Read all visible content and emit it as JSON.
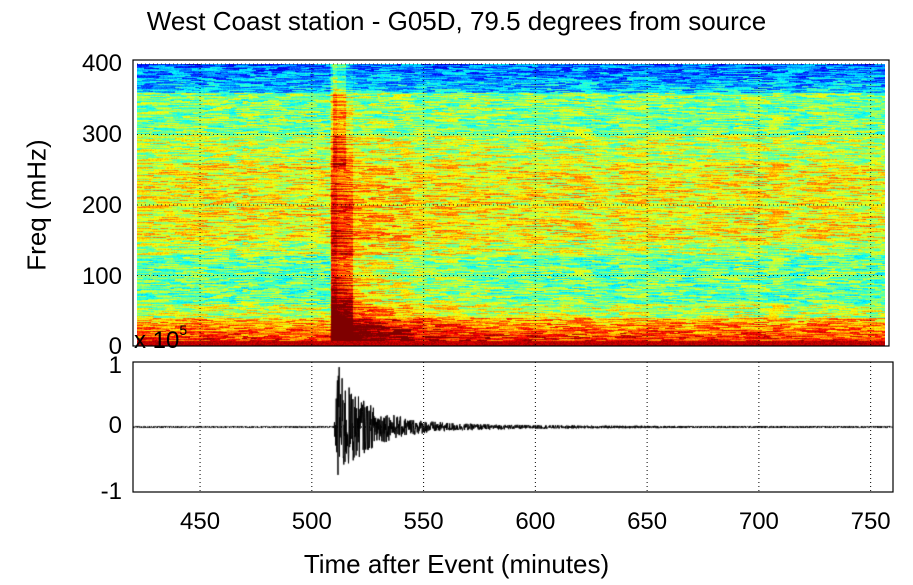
{
  "title": "West Coast station - G05D, 79.5 degrees from source",
  "chart_data": [
    {
      "type": "heatmap",
      "ylabel": "Freq (mHz)",
      "xlim": [
        420,
        760
      ],
      "ylim": [
        0,
        400
      ],
      "yticks": [
        "0",
        "100",
        "200",
        "300",
        "400"
      ],
      "grid": true,
      "colormap": "jet",
      "features": [
        {
          "x_start": 510,
          "x_end": 560,
          "y_low": 0,
          "y_high": 200,
          "level": 0.9
        },
        {
          "x_start": 420,
          "x_end": 760,
          "y_low": 0,
          "y_high": 15,
          "level": 0.95
        }
      ]
    },
    {
      "type": "line",
      "xlabel": "Time after Event (minutes)",
      "xlim": [
        420,
        760
      ],
      "ylim": [
        -1,
        1
      ],
      "xticks": [
        "450",
        "500",
        "550",
        "600",
        "650",
        "700",
        "750"
      ],
      "yticks": [
        "-1",
        "0",
        "1"
      ],
      "y_multiplier": "x 10",
      "y_multiplier_exp": "5",
      "grid": true,
      "event_onset": 510,
      "peak_amplitude": 0.95,
      "trough_amplitude": -0.82
    }
  ]
}
